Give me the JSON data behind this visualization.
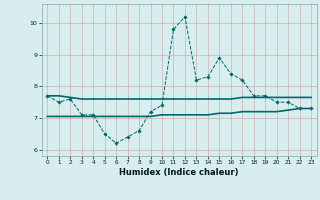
{
  "title": "",
  "xlabel": "Humidex (Indice chaleur)",
  "x_values": [
    0,
    1,
    2,
    3,
    4,
    5,
    6,
    7,
    8,
    9,
    10,
    11,
    12,
    13,
    14,
    15,
    16,
    17,
    18,
    19,
    20,
    21,
    22,
    23
  ],
  "line1_y": [
    7.7,
    7.5,
    7.6,
    7.1,
    7.1,
    6.5,
    6.2,
    6.4,
    6.6,
    7.2,
    7.4,
    9.8,
    10.2,
    8.2,
    8.3,
    8.9,
    8.4,
    8.2,
    7.7,
    7.7,
    7.5,
    7.5,
    7.3,
    7.3
  ],
  "line2_y": [
    7.7,
    7.7,
    7.65,
    7.6,
    7.6,
    7.6,
    7.6,
    7.6,
    7.6,
    7.6,
    7.6,
    7.6,
    7.6,
    7.6,
    7.6,
    7.6,
    7.6,
    7.65,
    7.65,
    7.65,
    7.65,
    7.65,
    7.65,
    7.65
  ],
  "line3_y": [
    7.05,
    7.05,
    7.05,
    7.05,
    7.05,
    7.05,
    7.05,
    7.05,
    7.05,
    7.05,
    7.1,
    7.1,
    7.1,
    7.1,
    7.1,
    7.15,
    7.15,
    7.2,
    7.2,
    7.2,
    7.2,
    7.25,
    7.3,
    7.3
  ],
  "bg_color": "#d8eeee",
  "grid_color": "#b8d8d8",
  "line_color": "#006868",
  "ylim": [
    5.8,
    10.6
  ],
  "xlim": [
    -0.5,
    23.5
  ],
  "yticks": [
    6,
    7,
    8,
    9,
    10
  ],
  "xticks": [
    0,
    1,
    2,
    3,
    4,
    5,
    6,
    7,
    8,
    9,
    10,
    11,
    12,
    13,
    14,
    15,
    16,
    17,
    18,
    19,
    20,
    21,
    22,
    23
  ]
}
